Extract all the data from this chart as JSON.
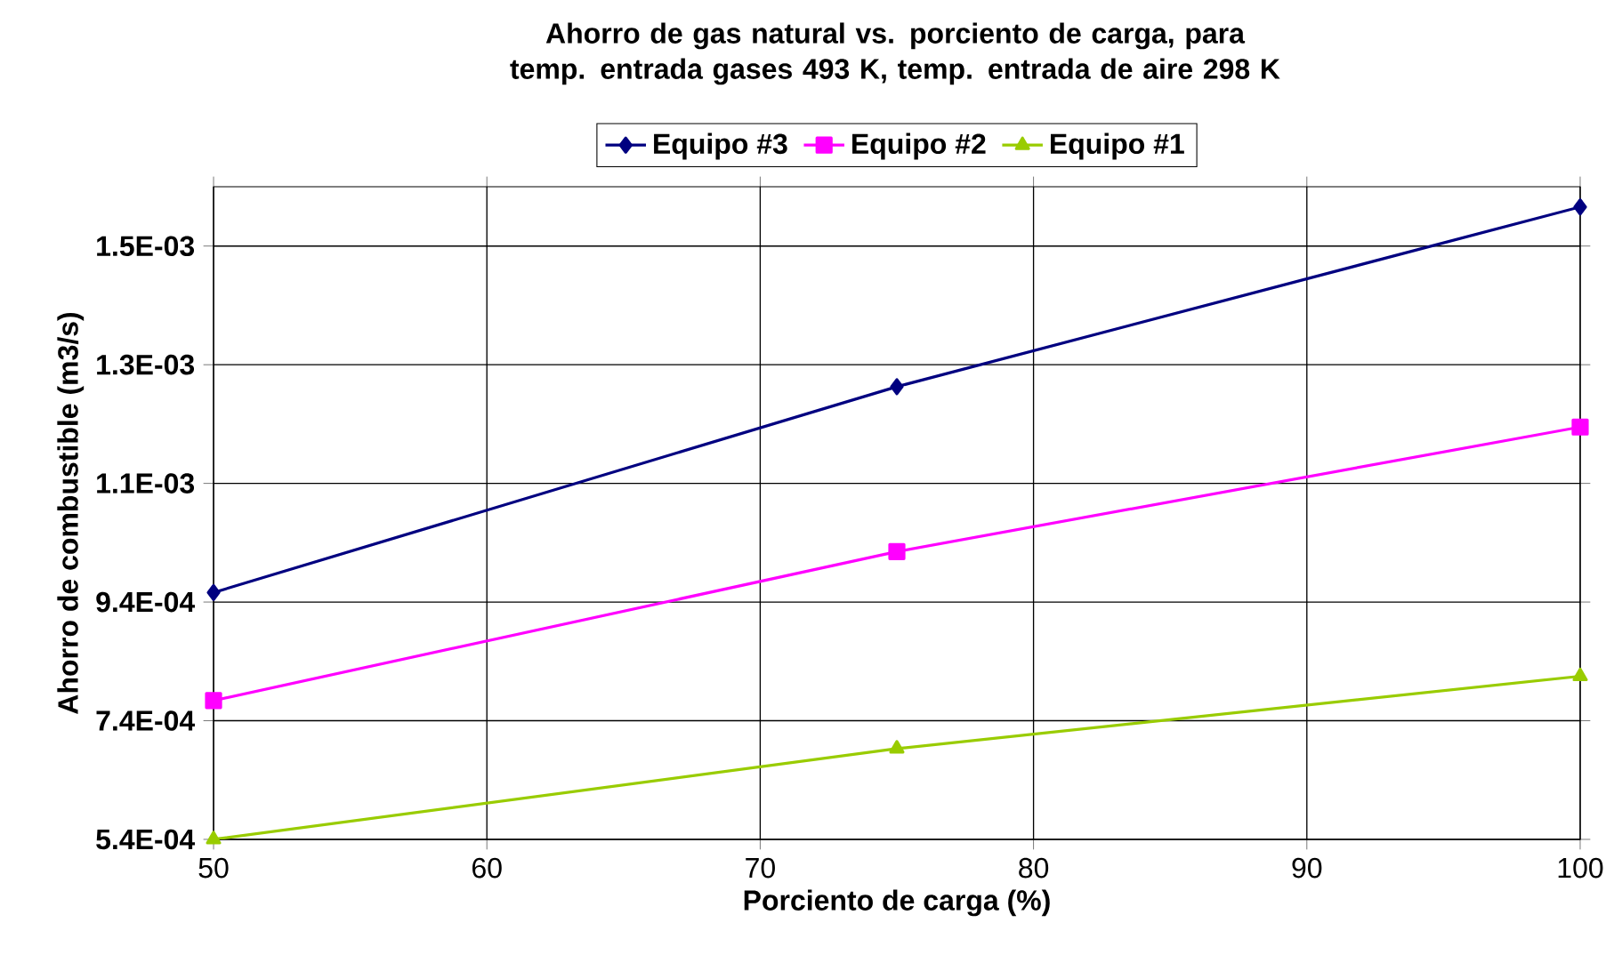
{
  "chart_data": {
    "type": "line",
    "title": "Ahorro de gas natural vs. porciento de carga, para temp. entrada gases 493 K, temp. entrada de aire 298 K",
    "xlabel": "Porciento de carga (%)",
    "ylabel": "Ahorro de combustible (m3/s)",
    "x": [
      50,
      75,
      100
    ],
    "series": [
      {
        "name": "Equipo #3",
        "color": "#000080",
        "marker": "diamond",
        "values": [
          0.000956,
          0.001303,
          0.001606
        ]
      },
      {
        "name": "Equipo #2",
        "color": "#ff00ff",
        "marker": "square",
        "values": [
          0.000774,
          0.001025,
          0.001235
        ]
      },
      {
        "name": "Equipo #1",
        "color": "#99cc00",
        "marker": "triangle",
        "values": [
          0.00054,
          0.000693,
          0.000815
        ]
      }
    ],
    "xlim": [
      50,
      100
    ],
    "xticks": [
      50,
      60,
      70,
      80,
      90,
      100
    ],
    "ylim": [
      0.00054,
      0.00164
    ],
    "yticks": [
      {
        "value": 0.00054,
        "label": "5.4E-04"
      },
      {
        "value": 0.00074,
        "label": "7.4E-04"
      },
      {
        "value": 0.00094,
        "label": "9.4E-04"
      },
      {
        "value": 0.00114,
        "label": "1.1E-03"
      },
      {
        "value": 0.00134,
        "label": "1.3E-03"
      },
      {
        "value": 0.00154,
        "label": "1.5E-03"
      }
    ],
    "grid": true,
    "legend": "top",
    "line_style": "solid"
  }
}
